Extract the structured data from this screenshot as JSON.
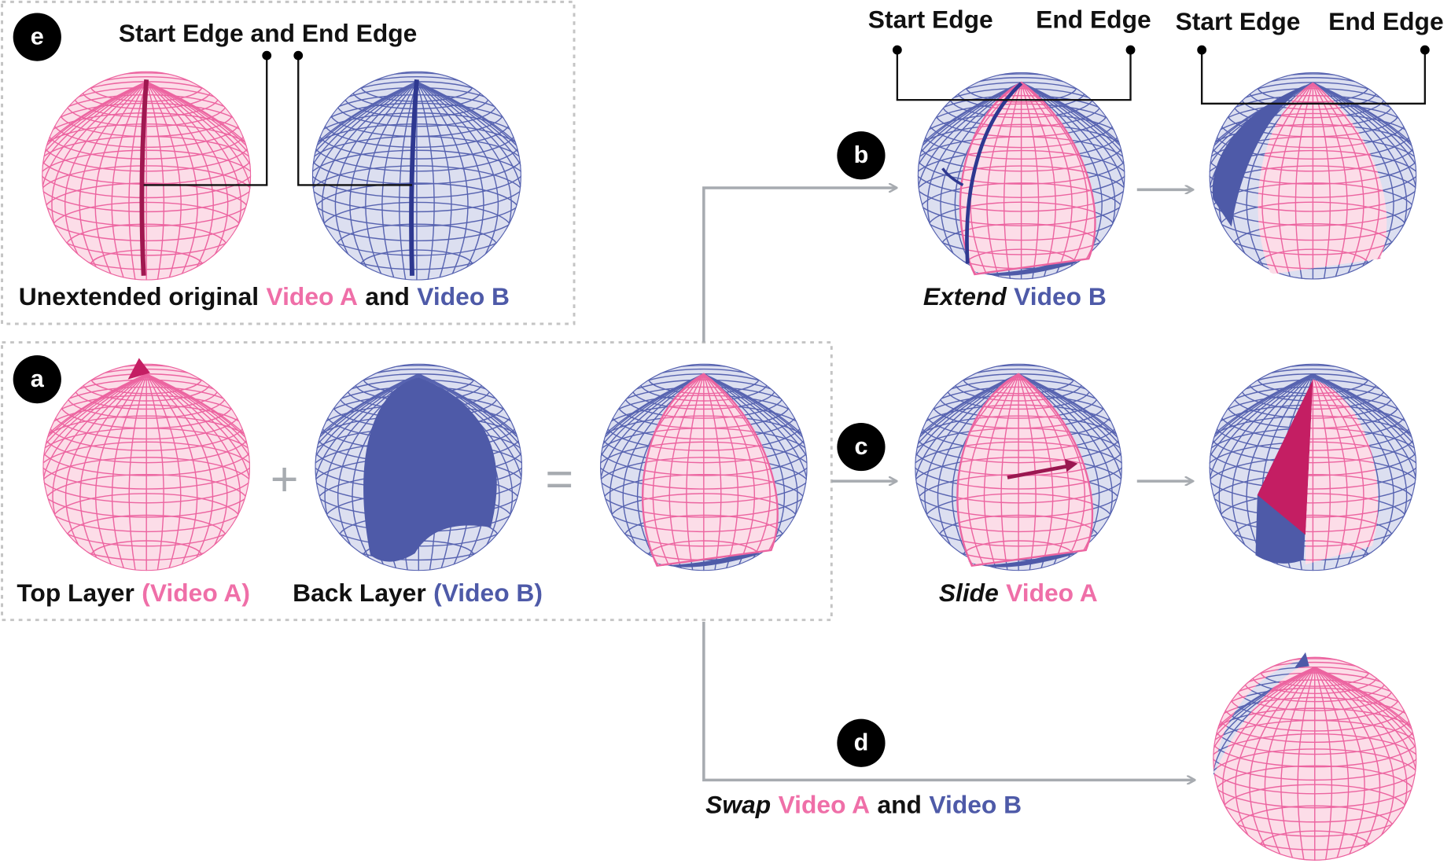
{
  "panel_e": {
    "badge": "e",
    "edge_label": "Start Edge and End Edge",
    "caption": {
      "lead": "Unextended original",
      "video_a": "Video A",
      "and": "and",
      "video_b": "Video B"
    }
  },
  "panel_a": {
    "badge": "a",
    "top_layer": "Top Layer",
    "top_video": "(Video A)",
    "back_layer": "Back Layer",
    "back_video": "(Video B)",
    "plus": "+",
    "equals": "="
  },
  "panel_b": {
    "badge": "b",
    "edge_labels": [
      "Start Edge",
      "End Edge",
      "Start Edge",
      "End Edge"
    ],
    "verb": "Extend",
    "video": "Video B"
  },
  "panel_c": {
    "badge": "c",
    "verb": "Slide",
    "video": "Video A"
  },
  "panel_d": {
    "badge": "d",
    "verb": "Swap",
    "video_a": "Video A",
    "and": "and",
    "video_b": "Video B"
  }
}
